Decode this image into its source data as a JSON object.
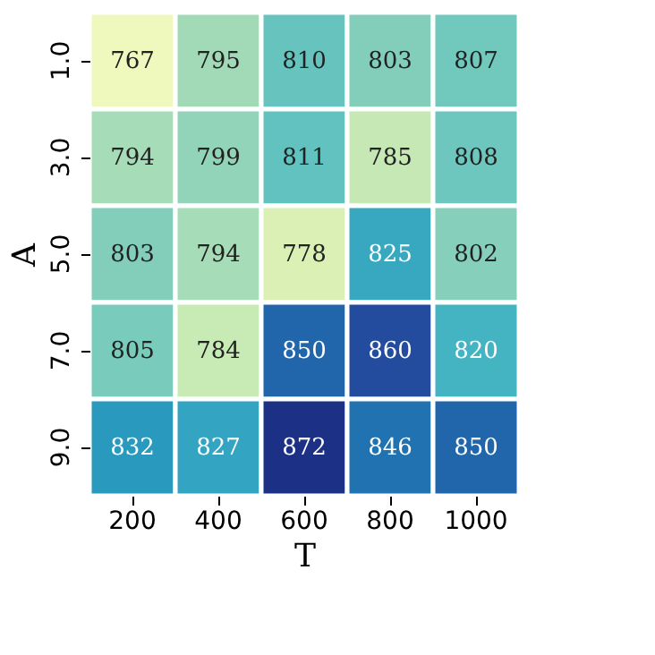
{
  "chart_data": {
    "type": "heatmap",
    "xlabel": "T",
    "ylabel": "A",
    "categories": [
      "200",
      "400",
      "600",
      "800",
      "1000"
    ],
    "y_categories": [
      "1.0",
      "3.0",
      "5.0",
      "7.0",
      "9.0"
    ],
    "cells": [
      [
        767,
        795,
        810,
        803,
        807
      ],
      [
        794,
        799,
        811,
        785,
        808
      ],
      [
        803,
        794,
        778,
        825,
        802
      ],
      [
        805,
        784,
        850,
        860,
        820
      ],
      [
        832,
        827,
        872,
        846,
        850
      ]
    ],
    "data_labels": true
  }
}
